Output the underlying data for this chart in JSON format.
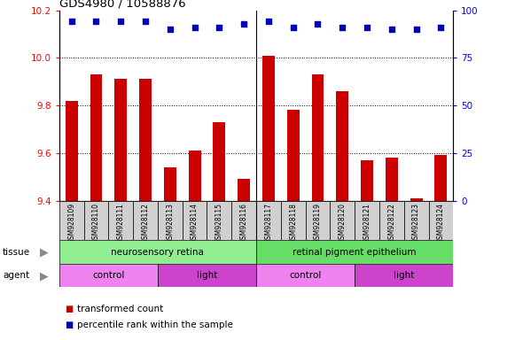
{
  "title": "GDS4980 / 10588876",
  "samples": [
    "GSM928109",
    "GSM928110",
    "GSM928111",
    "GSM928112",
    "GSM928113",
    "GSM928114",
    "GSM928115",
    "GSM928116",
    "GSM928117",
    "GSM928118",
    "GSM928119",
    "GSM928120",
    "GSM928121",
    "GSM928122",
    "GSM928123",
    "GSM928124"
  ],
  "red_values": [
    9.82,
    9.93,
    9.91,
    9.91,
    9.54,
    9.61,
    9.73,
    9.49,
    10.01,
    9.78,
    9.93,
    9.86,
    9.57,
    9.58,
    9.41,
    9.59
  ],
  "blue_values_pct": [
    94,
    94,
    94,
    94,
    90,
    91,
    91,
    93,
    94,
    91,
    93,
    91,
    91,
    90,
    90,
    91
  ],
  "ylim_left": [
    9.4,
    10.2
  ],
  "ylim_right": [
    0,
    100
  ],
  "yticks_left": [
    9.4,
    9.6,
    9.8,
    10.0,
    10.2
  ],
  "yticks_right": [
    0,
    25,
    50,
    75,
    100
  ],
  "tissue_labels": [
    "neurosensory retina",
    "retinal pigment epithelium"
  ],
  "tissue_split": 8,
  "agent_labels": [
    "control",
    "light",
    "control",
    "light"
  ],
  "agent_ranges": [
    0,
    4,
    8,
    12,
    16
  ],
  "tissue_color1": "#90EE90",
  "tissue_color2": "#66DD66",
  "agent_color1": "#EE82EE",
  "agent_color2": "#CC44CC",
  "bar_color": "#CC0000",
  "dot_color": "#0000BB",
  "bg_color": "#FFFFFF",
  "grid_color": "#000000",
  "legend_red": "transformed count",
  "legend_blue": "percentile rank within the sample",
  "n": 16
}
